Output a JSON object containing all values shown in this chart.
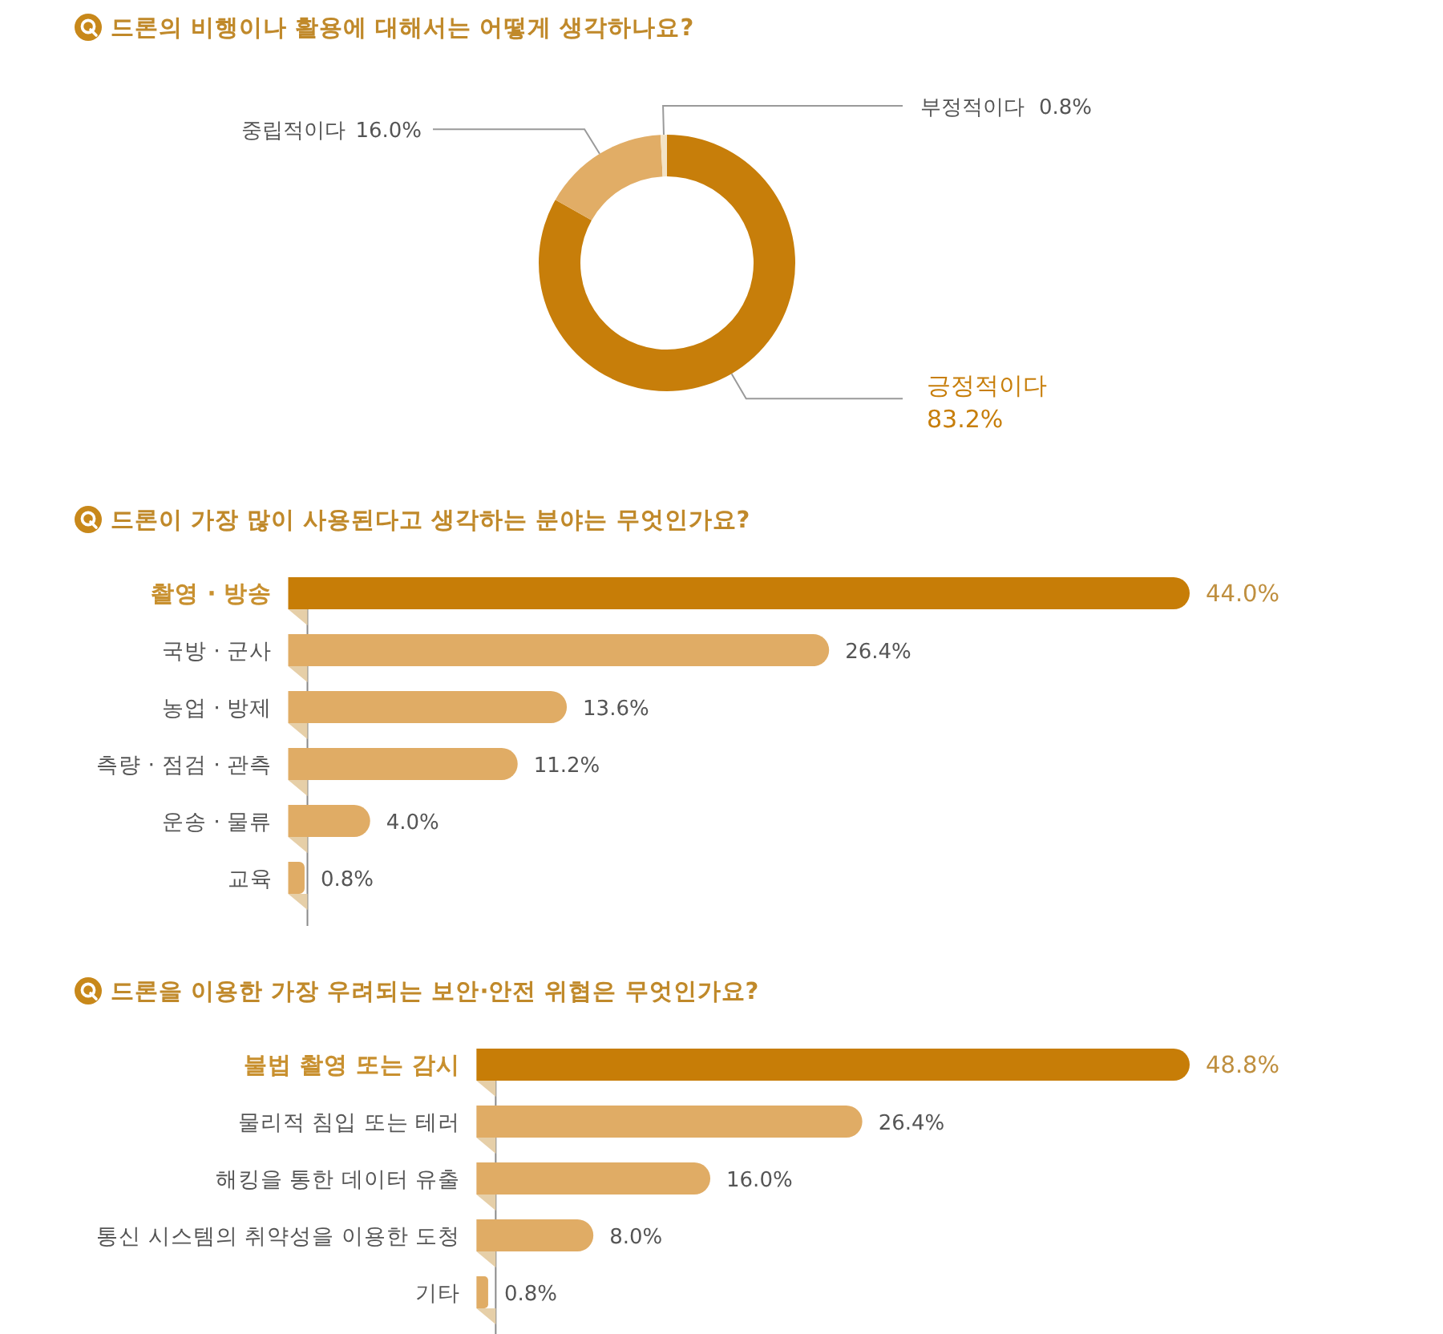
{
  "chart_data": [
    {
      "type": "donut",
      "title": "드론의 비행이나 활용에 대해서는 어떻게 생각하나요?",
      "categories": [
        "긍정적이다",
        "중립적이다",
        "부정적이다"
      ],
      "values": [
        83.2,
        16.0,
        0.8
      ],
      "colors": [
        "#c77e0a",
        "#e1ad66",
        "#f3e3c6"
      ],
      "value_labels": [
        "83.2%",
        "16.0%",
        "0.8%"
      ]
    },
    {
      "type": "bar",
      "orientation": "horizontal",
      "title": "드론이 가장 많이 사용된다고 생각하는 분야는 무엇인가요?",
      "categories": [
        "촬영 · 방송",
        "국방 · 군사",
        "농업 · 방제",
        "측량 · 점검 · 관측",
        "운송 · 물류",
        "교육"
      ],
      "values": [
        44.0,
        26.4,
        13.6,
        11.2,
        4.0,
        0.8
      ],
      "colors": [
        "#c77d07",
        "#e0ac65",
        "#e0ac65",
        "#e0ac65",
        "#e0ac65",
        "#e0ac65"
      ],
      "value_labels": [
        "44.0%",
        "26.4%",
        "13.6%",
        "11.2%",
        "4.0%",
        "0.8%"
      ]
    },
    {
      "type": "bar",
      "orientation": "horizontal",
      "title": "드론을 이용한 가장 우려되는 보안·안전 위협은 무엇인가요?",
      "categories": [
        "불법 촬영 또는 감시",
        "물리적 침입 또는 테러",
        "해킹을 통한 데이터 유출",
        "통신 시스템의 취약성을 이용한 도청",
        "기타"
      ],
      "values": [
        48.8,
        26.4,
        16.0,
        8.0,
        0.8
      ],
      "colors": [
        "#c77d07",
        "#e0ac65",
        "#e0ac65",
        "#e0ac65",
        "#e0ac65"
      ],
      "value_labels": [
        "48.8%",
        "26.4%",
        "16.0%",
        "8.0%",
        "0.8%"
      ]
    }
  ]
}
